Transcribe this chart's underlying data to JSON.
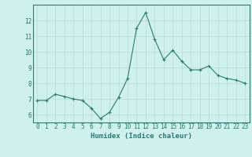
{
  "x": [
    0,
    1,
    2,
    3,
    4,
    5,
    6,
    7,
    8,
    9,
    10,
    11,
    12,
    13,
    14,
    15,
    16,
    17,
    18,
    19,
    20,
    21,
    22,
    23
  ],
  "y": [
    6.9,
    6.9,
    7.3,
    7.15,
    7.0,
    6.9,
    6.4,
    5.75,
    6.15,
    7.1,
    8.3,
    11.5,
    12.5,
    10.8,
    9.5,
    10.1,
    9.4,
    8.85,
    8.85,
    9.1,
    8.5,
    8.3,
    8.2,
    8.0
  ],
  "line_color": "#2d7a6e",
  "marker": "+",
  "marker_color": "#2d7a6e",
  "bg_color": "#cef0ee",
  "grid_color": "#b8dbd8",
  "tick_color": "#2d7a6e",
  "spine_color": "#2d7a6e",
  "xlabel": "Humidex (Indice chaleur)",
  "xlabel_color": "#2d7a6e",
  "ylim": [
    5.5,
    13.0
  ],
  "xlim": [
    -0.5,
    23.5
  ],
  "yticks": [
    6,
    7,
    8,
    9,
    10,
    11,
    12
  ],
  "xticks": [
    0,
    1,
    2,
    3,
    4,
    5,
    6,
    7,
    8,
    9,
    10,
    11,
    12,
    13,
    14,
    15,
    16,
    17,
    18,
    19,
    20,
    21,
    22,
    23
  ],
  "font_family": "monospace",
  "label_fontsize": 6.5,
  "tick_fontsize": 5.5,
  "linewidth": 0.8,
  "markersize": 3.5,
  "markeredgewidth": 0.8
}
